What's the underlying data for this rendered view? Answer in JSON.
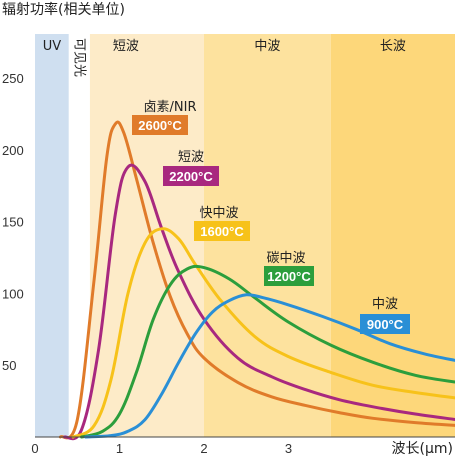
{
  "chart_data": {
    "type": "line",
    "ylabel": "辐射功率(相关单位)",
    "xlabel": "波长(μm)",
    "xlim": [
      0,
      5
    ],
    "ylim": [
      0,
      260
    ],
    "x_ticks": [
      0,
      1,
      2,
      3
    ],
    "y_ticks": [
      50,
      100,
      150,
      200,
      250
    ],
    "bands": [
      {
        "label": "UV",
        "from": 0,
        "to": 0.4,
        "color": "#cfdff0"
      },
      {
        "label": "可见光",
        "from": 0.4,
        "to": 0.65,
        "color": "#ffffff"
      },
      {
        "label": "短波",
        "from": 0.65,
        "to": 2.0,
        "color": "#fdebc8"
      },
      {
        "label": "中波",
        "from": 2.0,
        "to": 3.5,
        "color": "#fde29e"
      },
      {
        "label": "长波",
        "from": 3.5,
        "to": 5.0,
        "color": "#fdd77a"
      }
    ],
    "series": [
      {
        "name": "卤素/NIR",
        "temp": "2600°C",
        "color": "#e07b2a",
        "x": [
          0.3,
          0.5,
          0.7,
          0.85,
          0.95,
          1.05,
          1.2,
          1.4,
          1.6,
          1.8,
          2.0,
          2.4,
          2.8,
          3.2,
          3.6,
          4.0,
          4.5,
          5.0
        ],
        "y": [
          0,
          12,
          110,
          195,
          218,
          212,
          180,
          135,
          98,
          72,
          55,
          38,
          28,
          22,
          17,
          13,
          10,
          8
        ]
      },
      {
        "name": "短波",
        "temp": "2200°C",
        "color": "#a8287f",
        "x": [
          0.35,
          0.55,
          0.75,
          0.95,
          1.1,
          1.3,
          1.5,
          1.7,
          2.0,
          2.4,
          2.8,
          3.2,
          3.6,
          4.0,
          4.5,
          5.0
        ],
        "y": [
          0,
          5,
          60,
          155,
          188,
          178,
          145,
          115,
          82,
          55,
          42,
          33,
          26,
          21,
          16,
          12
        ]
      },
      {
        "name": "快中波",
        "temp": "1600°C",
        "color": "#f7c21a",
        "x": [
          0.45,
          0.7,
          0.9,
          1.1,
          1.3,
          1.5,
          1.7,
          1.9,
          2.2,
          2.6,
          3.0,
          3.5,
          4.0,
          4.5,
          5.0
        ],
        "y": [
          0,
          8,
          40,
          100,
          135,
          145,
          138,
          120,
          95,
          70,
          56,
          45,
          36,
          31,
          27
        ]
      },
      {
        "name": "碳中波",
        "temp": "1200°C",
        "color": "#2c9e3c",
        "x": [
          0.55,
          0.8,
          1.0,
          1.2,
          1.4,
          1.6,
          1.8,
          2.0,
          2.3,
          2.6,
          3.0,
          3.5,
          4.0,
          4.5,
          5.0
        ],
        "y": [
          0,
          4,
          16,
          45,
          82,
          106,
          117,
          118,
          110,
          97,
          80,
          64,
          52,
          43,
          38
        ]
      },
      {
        "name": "中波",
        "temp": "900°C",
        "color": "#2a8fd6",
        "x": [
          0.6,
          0.9,
          1.1,
          1.3,
          1.5,
          1.7,
          1.9,
          2.1,
          2.3,
          2.5,
          2.7,
          3.0,
          3.4,
          3.8,
          4.2,
          4.6,
          5.0
        ],
        "y": [
          0,
          1,
          4,
          12,
          30,
          52,
          72,
          87,
          95,
          99,
          97,
          92,
          84,
          75,
          65,
          58,
          53
        ]
      }
    ]
  }
}
